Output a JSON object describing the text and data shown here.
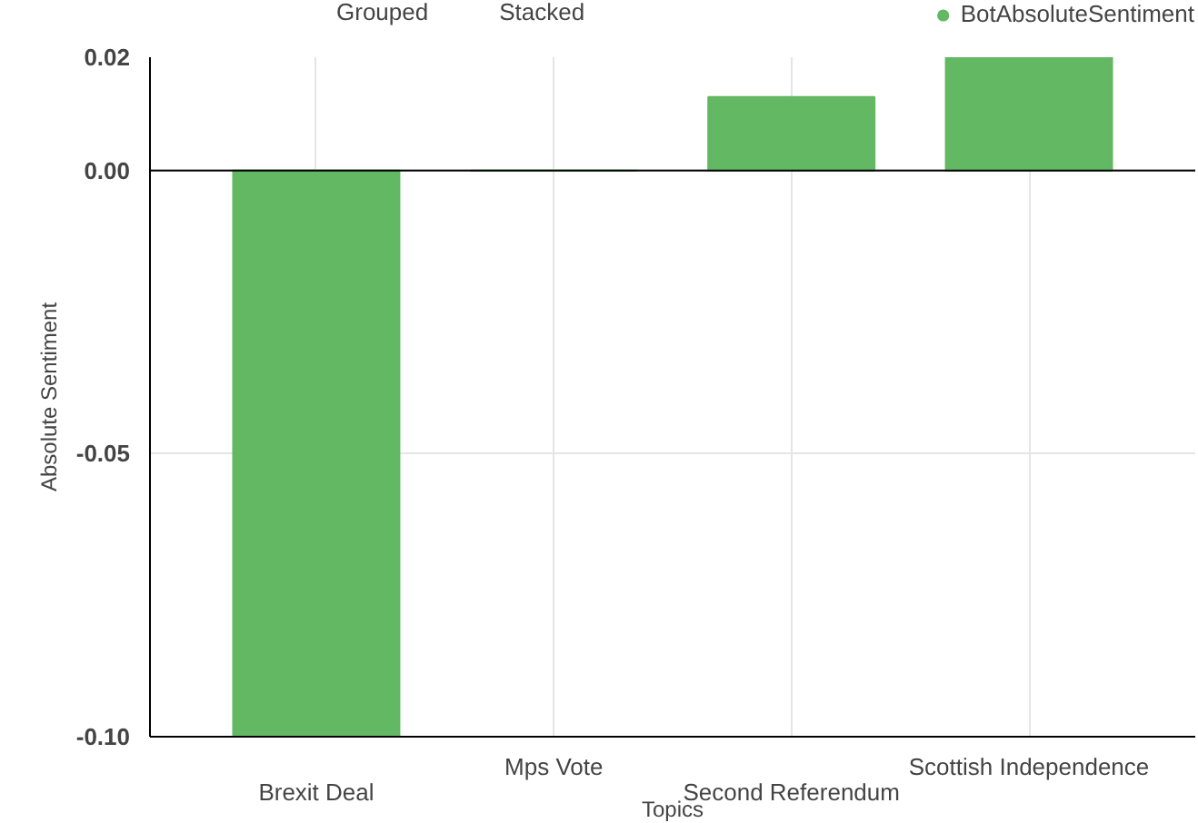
{
  "chart_data": {
    "type": "bar",
    "xlabel": "Topics",
    "ylabel": "Absolute Sentiment",
    "categories": [
      "Brexit Deal",
      "Mps Vote",
      "Second Referendum",
      "Scottish Independence"
    ],
    "series": [
      {
        "name": "BotAbsoluteSentiment",
        "color": "#63b863",
        "values": [
          -0.1,
          0.0,
          0.013,
          0.02
        ]
      }
    ],
    "ylim": [
      -0.1,
      0.02
    ],
    "yticks": [
      {
        "value": -0.1,
        "label": "-0.10"
      },
      {
        "value": -0.05,
        "label": "-0.05"
      },
      {
        "value": 0,
        "label": "0.00"
      },
      0.02
    ],
    "annotations": [
      "Grouped",
      "Stacked"
    ],
    "grid": true,
    "legend": "top right"
  }
}
